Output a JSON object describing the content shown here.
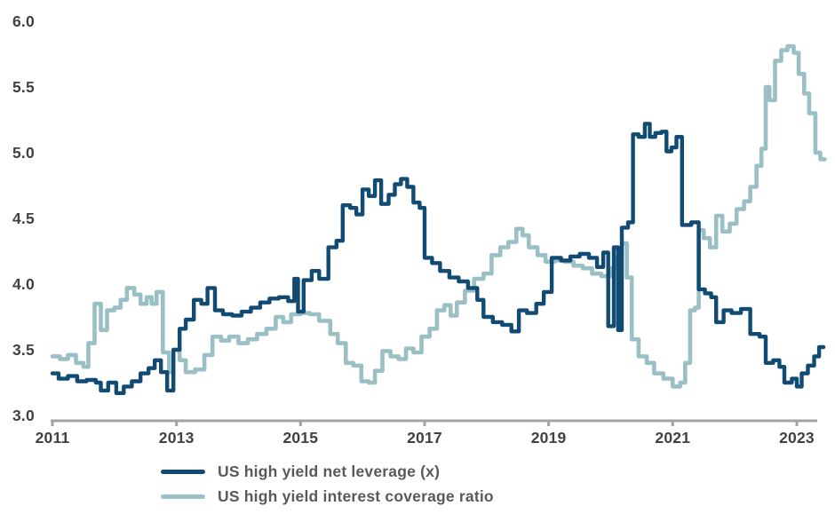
{
  "chart_data": {
    "type": "line",
    "step": true,
    "grid": false,
    "legend_position": "bottom-left",
    "axis_color": "#a1a3a6",
    "label_color": "#414042",
    "legend_text_color": "#58595b",
    "x_axis": {
      "ticks": [
        2011,
        2013,
        2015,
        2017,
        2019,
        2021,
        2023
      ],
      "range": [
        2011,
        2023.45
      ]
    },
    "y_axis": {
      "ticks": [
        "6.0",
        "5.5",
        "5.0",
        "4.5",
        "4.0",
        "3.5",
        "3.0"
      ],
      "range": [
        3.0,
        6.0
      ]
    },
    "series": [
      {
        "name": "US high yield net leverage (x)",
        "color": "#114a73",
        "points": [
          [
            2011.0,
            3.32
          ],
          [
            2011.1,
            3.28
          ],
          [
            2011.25,
            3.3
          ],
          [
            2011.4,
            3.26
          ],
          [
            2011.55,
            3.27
          ],
          [
            2011.7,
            3.25
          ],
          [
            2011.78,
            3.19
          ],
          [
            2011.9,
            3.25
          ],
          [
            2012.03,
            3.17
          ],
          [
            2012.15,
            3.22
          ],
          [
            2012.28,
            3.26
          ],
          [
            2012.42,
            3.32
          ],
          [
            2012.55,
            3.36
          ],
          [
            2012.65,
            3.42
          ],
          [
            2012.75,
            3.33
          ],
          [
            2012.85,
            3.19
          ],
          [
            2012.95,
            3.5
          ],
          [
            2013.05,
            3.66
          ],
          [
            2013.15,
            3.73
          ],
          [
            2013.28,
            3.88
          ],
          [
            2013.4,
            3.85
          ],
          [
            2013.5,
            3.97
          ],
          [
            2013.62,
            3.8
          ],
          [
            2013.75,
            3.77
          ],
          [
            2013.9,
            3.76
          ],
          [
            2014.05,
            3.79
          ],
          [
            2014.2,
            3.82
          ],
          [
            2014.35,
            3.86
          ],
          [
            2014.5,
            3.89
          ],
          [
            2014.65,
            3.9
          ],
          [
            2014.8,
            3.87
          ],
          [
            2014.9,
            4.04
          ],
          [
            2014.96,
            3.79
          ],
          [
            2015.05,
            4.03
          ],
          [
            2015.18,
            4.1
          ],
          [
            2015.3,
            4.04
          ],
          [
            2015.45,
            4.28
          ],
          [
            2015.58,
            4.33
          ],
          [
            2015.68,
            4.6
          ],
          [
            2015.8,
            4.58
          ],
          [
            2015.9,
            4.53
          ],
          [
            2016.0,
            4.72
          ],
          [
            2016.1,
            4.67
          ],
          [
            2016.2,
            4.79
          ],
          [
            2016.3,
            4.61
          ],
          [
            2016.42,
            4.68
          ],
          [
            2016.52,
            4.76
          ],
          [
            2016.62,
            4.8
          ],
          [
            2016.72,
            4.74
          ],
          [
            2016.82,
            4.62
          ],
          [
            2016.92,
            4.58
          ],
          [
            2017.0,
            4.2
          ],
          [
            2017.12,
            4.16
          ],
          [
            2017.25,
            4.1
          ],
          [
            2017.4,
            4.05
          ],
          [
            2017.55,
            4.02
          ],
          [
            2017.7,
            3.97
          ],
          [
            2017.85,
            3.88
          ],
          [
            2017.95,
            3.75
          ],
          [
            2018.1,
            3.71
          ],
          [
            2018.25,
            3.69
          ],
          [
            2018.4,
            3.64
          ],
          [
            2018.52,
            3.8
          ],
          [
            2018.65,
            3.78
          ],
          [
            2018.8,
            3.85
          ],
          [
            2018.92,
            3.94
          ],
          [
            2019.05,
            4.2
          ],
          [
            2019.2,
            4.18
          ],
          [
            2019.35,
            4.21
          ],
          [
            2019.5,
            4.23
          ],
          [
            2019.65,
            4.2
          ],
          [
            2019.78,
            4.13
          ],
          [
            2019.88,
            4.24
          ],
          [
            2019.96,
            3.68
          ],
          [
            2020.05,
            4.28
          ],
          [
            2020.12,
            3.65
          ],
          [
            2020.18,
            4.43
          ],
          [
            2020.28,
            4.47
          ],
          [
            2020.36,
            5.14
          ],
          [
            2020.45,
            5.12
          ],
          [
            2020.55,
            5.22
          ],
          [
            2020.63,
            5.12
          ],
          [
            2020.72,
            5.15
          ],
          [
            2020.82,
            5.16
          ],
          [
            2020.9,
            5.01
          ],
          [
            2020.98,
            5.04
          ],
          [
            2021.06,
            5.12
          ],
          [
            2021.15,
            4.45
          ],
          [
            2021.3,
            4.47
          ],
          [
            2021.42,
            3.96
          ],
          [
            2021.52,
            3.93
          ],
          [
            2021.62,
            3.9
          ],
          [
            2021.7,
            3.71
          ],
          [
            2021.82,
            3.8
          ],
          [
            2021.95,
            3.78
          ],
          [
            2022.1,
            3.81
          ],
          [
            2022.25,
            3.62
          ],
          [
            2022.4,
            3.6
          ],
          [
            2022.5,
            3.4
          ],
          [
            2022.62,
            3.42
          ],
          [
            2022.72,
            3.37
          ],
          [
            2022.8,
            3.25
          ],
          [
            2022.92,
            3.28
          ],
          [
            2023.0,
            3.22
          ],
          [
            2023.08,
            3.32
          ],
          [
            2023.18,
            3.38
          ],
          [
            2023.28,
            3.45
          ],
          [
            2023.36,
            3.52
          ]
        ]
      },
      {
        "name": "US high yield interest coverage ratio",
        "color": "#9ac0c5",
        "points": [
          [
            2011.0,
            3.45
          ],
          [
            2011.12,
            3.43
          ],
          [
            2011.25,
            3.46
          ],
          [
            2011.38,
            3.4
          ],
          [
            2011.5,
            3.37
          ],
          [
            2011.58,
            3.55
          ],
          [
            2011.68,
            3.85
          ],
          [
            2011.78,
            3.65
          ],
          [
            2011.88,
            3.8
          ],
          [
            2012.0,
            3.82
          ],
          [
            2012.1,
            3.88
          ],
          [
            2012.2,
            3.97
          ],
          [
            2012.32,
            3.92
          ],
          [
            2012.42,
            3.85
          ],
          [
            2012.52,
            3.9
          ],
          [
            2012.6,
            3.85
          ],
          [
            2012.68,
            3.94
          ],
          [
            2012.78,
            3.48
          ],
          [
            2012.88,
            3.33
          ],
          [
            2012.95,
            3.5
          ],
          [
            2013.05,
            3.42
          ],
          [
            2013.15,
            3.33
          ],
          [
            2013.3,
            3.35
          ],
          [
            2013.45,
            3.46
          ],
          [
            2013.58,
            3.6
          ],
          [
            2013.72,
            3.57
          ],
          [
            2013.85,
            3.6
          ],
          [
            2014.0,
            3.55
          ],
          [
            2014.15,
            3.58
          ],
          [
            2014.3,
            3.62
          ],
          [
            2014.45,
            3.66
          ],
          [
            2014.6,
            3.75
          ],
          [
            2014.72,
            3.71
          ],
          [
            2014.85,
            3.77
          ],
          [
            2015.0,
            3.78
          ],
          [
            2015.15,
            3.77
          ],
          [
            2015.3,
            3.72
          ],
          [
            2015.48,
            3.62
          ],
          [
            2015.6,
            3.55
          ],
          [
            2015.73,
            3.4
          ],
          [
            2015.85,
            3.38
          ],
          [
            2015.98,
            3.26
          ],
          [
            2016.1,
            3.25
          ],
          [
            2016.2,
            3.34
          ],
          [
            2016.32,
            3.49
          ],
          [
            2016.45,
            3.45
          ],
          [
            2016.58,
            3.43
          ],
          [
            2016.7,
            3.51
          ],
          [
            2016.82,
            3.48
          ],
          [
            2016.95,
            3.6
          ],
          [
            2017.08,
            3.66
          ],
          [
            2017.2,
            3.8
          ],
          [
            2017.32,
            3.84
          ],
          [
            2017.42,
            3.76
          ],
          [
            2017.52,
            3.86
          ],
          [
            2017.65,
            3.95
          ],
          [
            2017.8,
            4.04
          ],
          [
            2017.95,
            4.08
          ],
          [
            2018.08,
            4.22
          ],
          [
            2018.22,
            4.28
          ],
          [
            2018.35,
            4.32
          ],
          [
            2018.48,
            4.42
          ],
          [
            2018.58,
            4.37
          ],
          [
            2018.68,
            4.28
          ],
          [
            2018.82,
            4.22
          ],
          [
            2018.95,
            4.17
          ],
          [
            2019.1,
            4.18
          ],
          [
            2019.25,
            4.17
          ],
          [
            2019.4,
            4.14
          ],
          [
            2019.55,
            4.12
          ],
          [
            2019.7,
            4.08
          ],
          [
            2019.85,
            4.06
          ],
          [
            2020.0,
            4.12
          ],
          [
            2020.1,
            4.2
          ],
          [
            2020.18,
            4.31
          ],
          [
            2020.26,
            4.05
          ],
          [
            2020.34,
            3.58
          ],
          [
            2020.45,
            3.45
          ],
          [
            2020.58,
            3.4
          ],
          [
            2020.7,
            3.32
          ],
          [
            2020.85,
            3.28
          ],
          [
            2021.0,
            3.22
          ],
          [
            2021.12,
            3.25
          ],
          [
            2021.2,
            3.4
          ],
          [
            2021.28,
            3.8
          ],
          [
            2021.36,
            3.82
          ],
          [
            2021.42,
            4.41
          ],
          [
            2021.5,
            4.35
          ],
          [
            2021.6,
            4.28
          ],
          [
            2021.7,
            4.52
          ],
          [
            2021.8,
            4.4
          ],
          [
            2021.92,
            4.46
          ],
          [
            2022.03,
            4.57
          ],
          [
            2022.15,
            4.63
          ],
          [
            2022.25,
            4.74
          ],
          [
            2022.35,
            4.9
          ],
          [
            2022.43,
            5.03
          ],
          [
            2022.5,
            5.5
          ],
          [
            2022.56,
            5.4
          ],
          [
            2022.65,
            5.7
          ],
          [
            2022.75,
            5.78
          ],
          [
            2022.85,
            5.81
          ],
          [
            2022.95,
            5.76
          ],
          [
            2023.03,
            5.6
          ],
          [
            2023.12,
            5.45
          ],
          [
            2023.2,
            5.3
          ],
          [
            2023.3,
            5.0
          ],
          [
            2023.38,
            4.95
          ]
        ]
      }
    ]
  }
}
